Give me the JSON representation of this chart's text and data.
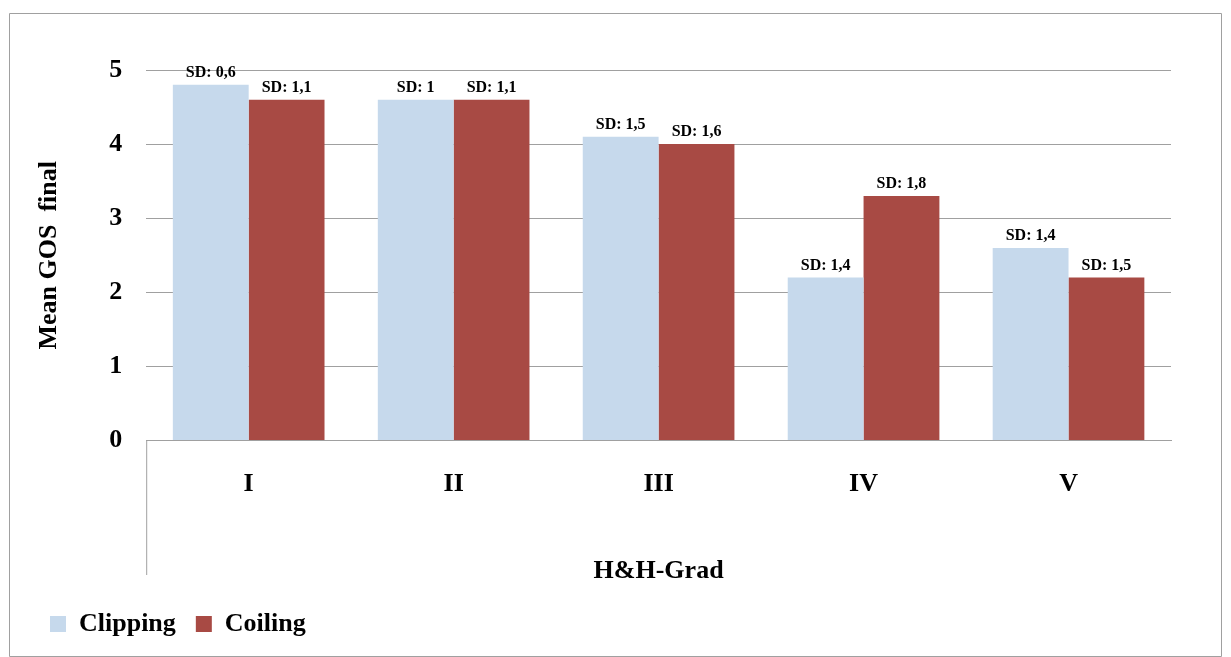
{
  "chart_data": {
    "type": "bar",
    "xlabel": "H&H-Grad",
    "ylabel": "Mean GOS  final",
    "categories": [
      "I",
      "II",
      "III",
      "IV",
      "V"
    ],
    "series": [
      {
        "name": "Clipping",
        "color": "#c6d9ec",
        "values": [
          4.8,
          4.6,
          4.1,
          2.2,
          2.6
        ]
      },
      {
        "name": "Coiling",
        "color": "#a84a44",
        "values": [
          4.6,
          4.6,
          4.0,
          3.3,
          2.2
        ]
      }
    ],
    "annotations": [
      {
        "text": "SD: 0,6",
        "x": "I",
        "y": 4.8
      },
      {
        "text": "SD: 1,1",
        "x": "I",
        "y": 4.6
      },
      {
        "text": "SD: 1",
        "x": "II",
        "y": 4.6
      },
      {
        "text": "SD: 1,1",
        "x": "II",
        "y": 4.6
      },
      {
        "text": "SD: 1,5",
        "x": "III",
        "y": 4.1
      },
      {
        "text": "SD: 1,6",
        "x": "III",
        "y": 4.0
      },
      {
        "text": "SD: 1,4",
        "x": "IV",
        "y": 2.2
      },
      {
        "text": "SD: 1,8",
        "x": "IV",
        "y": 3.3
      },
      {
        "text": "SD: 1,4",
        "x": "V",
        "y": 2.6
      },
      {
        "text": "SD: 1,5",
        "x": "V",
        "y": 2.2
      }
    ],
    "ylim": [
      0,
      5
    ],
    "yticks": [
      0,
      1,
      2,
      3,
      4,
      5
    ],
    "grid": "y",
    "legend": "bottom left"
  }
}
